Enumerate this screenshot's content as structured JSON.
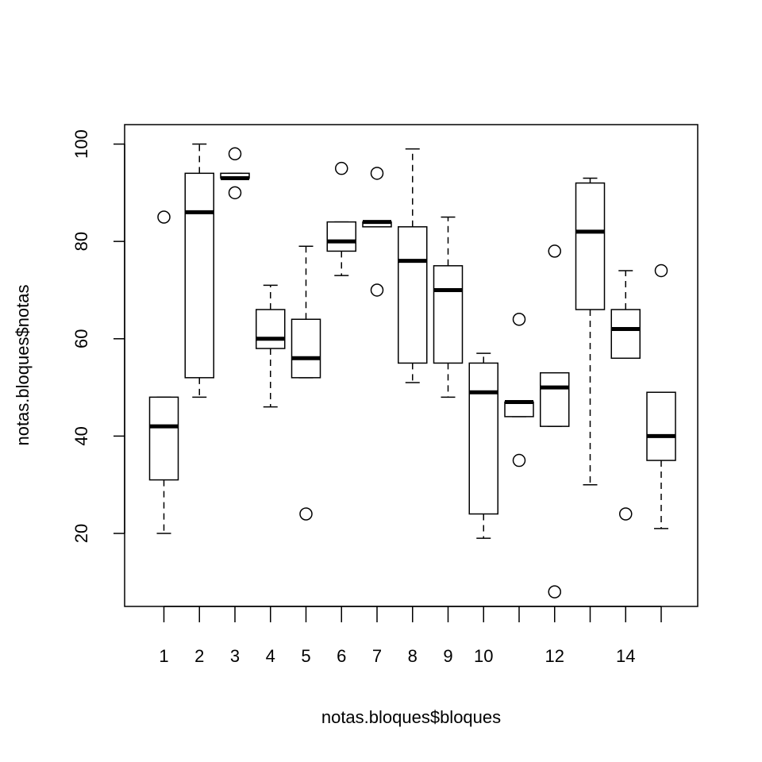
{
  "chart_data": {
    "type": "boxplot",
    "xlabel": "notas.bloques$bloques",
    "ylabel": "notas.bloques$notas",
    "ylim": [
      5,
      104
    ],
    "y_ticks": [
      20,
      40,
      60,
      80,
      100
    ],
    "x_tick_labels": [
      "1",
      "2",
      "3",
      "4",
      "5",
      "6",
      "7",
      "8",
      "9",
      "10",
      "",
      "12",
      "",
      "14",
      ""
    ],
    "groups": [
      {
        "group": "1",
        "whisker_low": 20,
        "q1": 31,
        "median": 42,
        "q3": 48,
        "whisker_high": 48,
        "outliers": [
          85
        ]
      },
      {
        "group": "2",
        "whisker_low": 48,
        "q1": 52,
        "median": 86,
        "q3": 94,
        "whisker_high": 100,
        "outliers": []
      },
      {
        "group": "3",
        "whisker_low": 93,
        "q1": 93,
        "median": 93,
        "q3": 94,
        "whisker_high": 94,
        "outliers": [
          98,
          90
        ]
      },
      {
        "group": "4",
        "whisker_low": 46,
        "q1": 58,
        "median": 60,
        "q3": 66,
        "whisker_high": 71,
        "outliers": []
      },
      {
        "group": "5",
        "whisker_low": 52,
        "q1": 52,
        "median": 56,
        "q3": 64,
        "whisker_high": 79,
        "outliers": [
          24
        ]
      },
      {
        "group": "6",
        "whisker_low": 73,
        "q1": 78,
        "median": 80,
        "q3": 84,
        "whisker_high": 84,
        "outliers": [
          95
        ]
      },
      {
        "group": "7",
        "whisker_low": 83,
        "q1": 83,
        "median": 84,
        "q3": 84,
        "whisker_high": 84,
        "outliers": [
          94,
          70
        ]
      },
      {
        "group": "8",
        "whisker_low": 51,
        "q1": 55,
        "median": 76,
        "q3": 83,
        "whisker_high": 99,
        "outliers": []
      },
      {
        "group": "9",
        "whisker_low": 48,
        "q1": 55,
        "median": 70,
        "q3": 75,
        "whisker_high": 85,
        "outliers": []
      },
      {
        "group": "10",
        "whisker_low": 19,
        "q1": 24,
        "median": 49,
        "q3": 55,
        "whisker_high": 57,
        "outliers": []
      },
      {
        "group": "11",
        "whisker_low": 44,
        "q1": 44,
        "median": 47,
        "q3": 47,
        "whisker_high": 47,
        "outliers": [
          64,
          35
        ]
      },
      {
        "group": "12",
        "whisker_low": 42,
        "q1": 42,
        "median": 50,
        "q3": 53,
        "whisker_high": 53,
        "outliers": [
          78,
          8
        ]
      },
      {
        "group": "13",
        "whisker_low": 30,
        "q1": 66,
        "median": 82,
        "q3": 92,
        "whisker_high": 93,
        "outliers": []
      },
      {
        "group": "14",
        "whisker_low": 56,
        "q1": 56,
        "median": 62,
        "q3": 66,
        "whisker_high": 74,
        "outliers": [
          24
        ]
      },
      {
        "group": "15",
        "whisker_low": 21,
        "q1": 35,
        "median": 40,
        "q3": 49,
        "whisker_high": 49,
        "outliers": [
          74
        ]
      }
    ]
  }
}
